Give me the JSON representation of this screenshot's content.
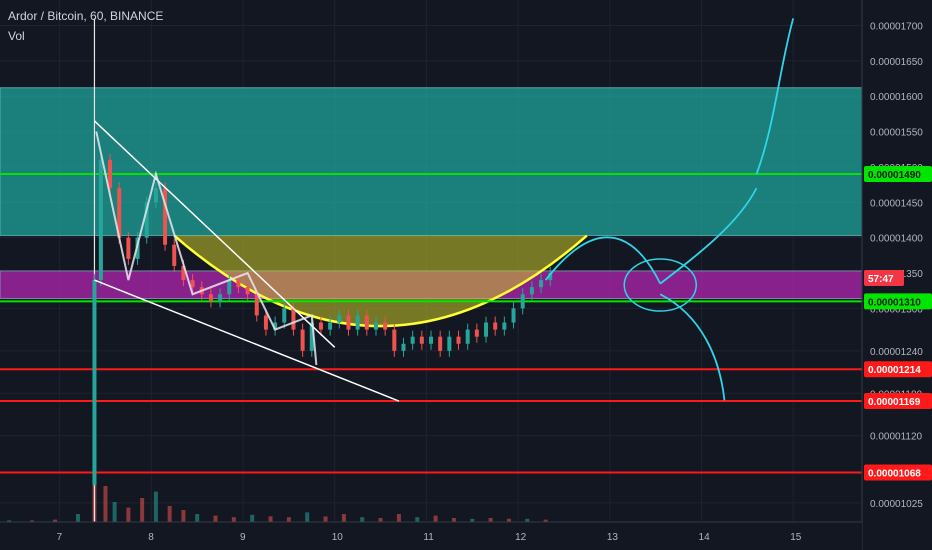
{
  "header": {
    "symbol": "Ardor / Bitcoin, 60, BINANCE",
    "indicator": "Vol"
  },
  "chart_data": {
    "type": "candlestick",
    "price_axis": {
      "ylim": [
        9.98e-06,
        1.736e-05
      ],
      "ticks": [
        "0.00001700",
        "0.00001650",
        "0.00001600",
        "0.00001550",
        "0.00001500",
        "0.00001450",
        "0.00001400",
        "0.00001350",
        "0.00001300",
        "0.00001240",
        "0.00001180",
        "0.00001120",
        "0.00001025"
      ],
      "tick_values": [
        1.7e-05,
        1.65e-05,
        1.6e-05,
        1.55e-05,
        1.5e-05,
        1.45e-05,
        1.4e-05,
        1.35e-05,
        1.3e-05,
        1.24e-05,
        1.18e-05,
        1.12e-05,
        1.025e-05
      ]
    },
    "time_axis": {
      "ticks": [
        "7",
        "8",
        "9",
        "10",
        "11",
        "12",
        "13",
        "14",
        "15"
      ],
      "tick_days": [
        7,
        8,
        9,
        10,
        11,
        12,
        13,
        14,
        15
      ],
      "xlim": [
        6.35,
        15.75
      ]
    },
    "horizontal_levels": [
      {
        "price": 1.49e-05,
        "label": "0.00001490",
        "color": "#00e600"
      },
      {
        "price": 1.31e-05,
        "label": "0.00001310",
        "color": "#00e600"
      },
      {
        "price": 1.214e-05,
        "label": "0.00001214",
        "color": "#ff1a1a"
      },
      {
        "price": 1.169e-05,
        "label": "0.00001169",
        "color": "#ff1a1a"
      },
      {
        "price": 1.068e-05,
        "label": "0.00001068",
        "color": "#ff1a1a"
      }
    ],
    "current_price_tag": {
      "price": 1.343e-05,
      "label": "57:47",
      "color": "#f23645"
    },
    "zones": [
      {
        "name": "teal-resistance-zone",
        "from": 1.403e-05,
        "to": 1.612e-05,
        "color": "#1fa39a"
      },
      {
        "name": "magenta-support-zone",
        "from": 1.314e-05,
        "to": 1.353e-05,
        "color": "#b026b0"
      }
    ],
    "series": [
      {
        "name": "",
        "x": [
          7.38,
          7.45,
          7.55,
          7.65,
          7.75,
          7.85,
          7.95,
          8.05,
          8.15,
          8.25,
          8.35,
          8.45,
          8.55,
          8.65,
          8.75,
          8.85,
          8.95,
          9.05,
          9.15,
          9.25,
          9.35,
          9.45,
          9.55,
          9.65,
          9.75,
          9.85,
          9.95,
          10.05,
          10.15,
          10.25,
          10.35,
          10.45,
          10.55,
          10.65,
          10.75,
          10.85,
          10.95,
          11.05,
          11.15,
          11.25,
          11.35,
          11.45,
          11.55,
          11.65,
          11.75,
          11.85,
          11.95,
          12.05,
          12.15,
          12.25,
          12.35
        ],
        "y": [
          1.34e-05,
          1.51e-05,
          1.47e-05,
          1.4e-05,
          1.37e-05,
          1.4e-05,
          1.45e-05,
          1.47e-05,
          1.39e-05,
          1.36e-05,
          1.34e-05,
          1.33e-05,
          1.32e-05,
          1.31e-05,
          1.32e-05,
          1.34e-05,
          1.33e-05,
          1.32e-05,
          1.29e-05,
          1.27e-05,
          1.28e-05,
          1.3e-05,
          1.27e-05,
          1.24e-05,
          1.28e-05,
          1.27e-05,
          1.28e-05,
          1.29e-05,
          1.27e-05,
          1.29e-05,
          1.27e-05,
          1.28e-05,
          1.27e-05,
          1.24e-05,
          1.25e-05,
          1.26e-05,
          1.25e-05,
          1.26e-05,
          1.24e-05,
          1.26e-05,
          1.25e-05,
          1.27e-05,
          1.26e-05,
          1.28e-05,
          1.27e-05,
          1.28e-05,
          1.3e-05,
          1.32e-05,
          1.33e-05,
          1.34e-05,
          1.35e-05
        ]
      }
    ],
    "volume_series": {
      "x": [
        6.45,
        6.7,
        6.95,
        7.2,
        7.38,
        7.5,
        7.6,
        7.75,
        7.9,
        8.05,
        8.2,
        8.35,
        8.5,
        8.7,
        8.9,
        9.1,
        9.3,
        9.5,
        9.7,
        9.9,
        10.1,
        10.3,
        10.5,
        10.7,
        10.9,
        11.1,
        11.3,
        11.5,
        11.7,
        11.9,
        12.1,
        12.3
      ],
      "v": [
        2,
        2,
        3,
        10,
        100,
        45,
        25,
        18,
        30,
        38,
        20,
        15,
        10,
        8,
        6,
        9,
        7,
        6,
        12,
        7,
        10,
        6,
        5,
        10,
        6,
        8,
        5,
        4,
        5,
        4,
        4,
        3
      ]
    }
  }
}
